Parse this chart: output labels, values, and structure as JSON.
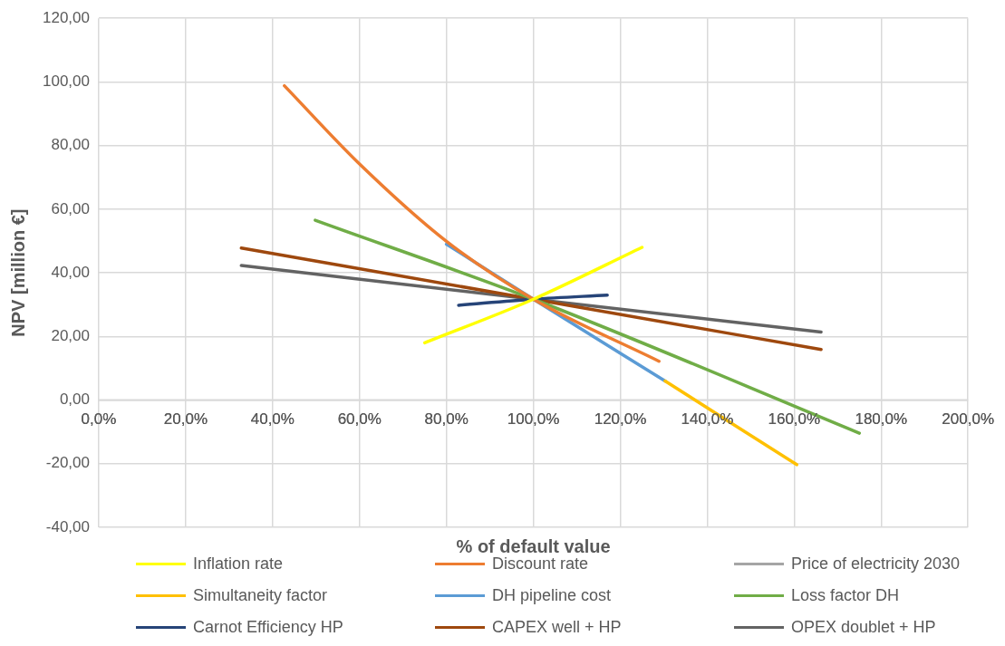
{
  "chart_data": {
    "type": "line",
    "xlabel": "% of default value",
    "ylabel": "NPV [million €]",
    "xlim": [
      0,
      200
    ],
    "ylim": [
      -40,
      120
    ],
    "xticks": [
      {
        "value": 0,
        "label": "0,0%"
      },
      {
        "value": 20,
        "label": "20,0%"
      },
      {
        "value": 40,
        "label": "40,0%"
      },
      {
        "value": 60,
        "label": "60,0%"
      },
      {
        "value": 80,
        "label": "80,0%"
      },
      {
        "value": 100,
        "label": "100,0%"
      },
      {
        "value": 120,
        "label": "120,0%"
      },
      {
        "value": 140,
        "label": "140,0%"
      },
      {
        "value": 160,
        "label": "160,0%"
      },
      {
        "value": 180,
        "label": "180,0%"
      },
      {
        "value": 200,
        "label": "200,0%"
      }
    ],
    "yticks": [
      {
        "value": -40,
        "label": "-40,00"
      },
      {
        "value": -20,
        "label": "-20,00"
      },
      {
        "value": 0,
        "label": "0,00"
      },
      {
        "value": 20,
        "label": "20,00"
      },
      {
        "value": 40,
        "label": "40,00"
      },
      {
        "value": 60,
        "label": "60,00"
      },
      {
        "value": 80,
        "label": "80,00"
      },
      {
        "value": 100,
        "label": "100,00"
      },
      {
        "value": 120,
        "label": "120,00"
      }
    ],
    "grid": true,
    "legend": "bottom",
    "marker": "none",
    "line_style": "solid",
    "series": [
      {
        "name": "Inflation rate",
        "color": "#ffff00",
        "x": [
          75,
          100,
          125
        ],
        "values": [
          18,
          31.7,
          48
        ]
      },
      {
        "name": "Discount rate",
        "color": "#ed7d31",
        "x": [
          42.7,
          60,
          80,
          100,
          128.9
        ],
        "values": [
          98.8,
          74.2,
          49.9,
          31.7,
          12.2
        ]
      },
      {
        "name": "Price of electricity 2030",
        "color": "#a5a5a5"
      },
      {
        "name": "Simultaneity factor",
        "color": "#ffc000",
        "x": [
          130.3,
          160.6
        ],
        "values": [
          6,
          -20.3
        ]
      },
      {
        "name": "DH pipeline cost",
        "color": "#5b9bd5",
        "x": [
          80,
          100,
          130.3
        ],
        "values": [
          49,
          31.7,
          6
        ]
      },
      {
        "name": "Loss factor DH",
        "color": "#70ad47",
        "x": [
          49.8,
          100,
          175
        ],
        "values": [
          56.5,
          31.7,
          -10.4
        ]
      },
      {
        "name": "Carnot Efficiency HP",
        "color": "#264478",
        "x": [
          82.8,
          100,
          117
        ],
        "values": [
          29.8,
          31.7,
          33
        ]
      },
      {
        "name": "CAPEX well + HP",
        "color": "#9e480e",
        "x": [
          32.8,
          100,
          166.2
        ],
        "values": [
          47.8,
          31.7,
          15.9
        ]
      },
      {
        "name": "OPEX doublet + HP",
        "color": "#636363",
        "x": [
          32.8,
          100,
          166.2
        ],
        "values": [
          42.3,
          31.7,
          21.4
        ]
      }
    ]
  }
}
